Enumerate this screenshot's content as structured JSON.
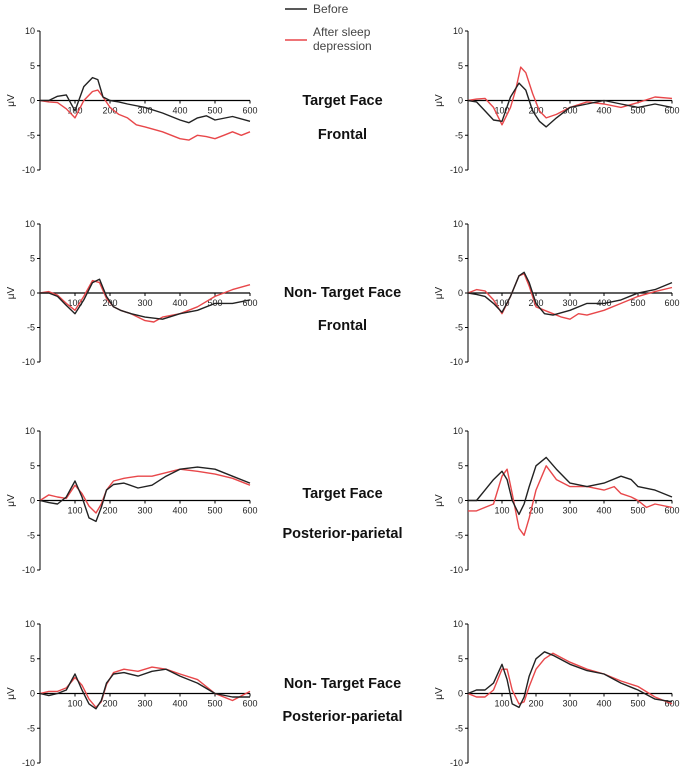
{
  "legend": {
    "items": [
      {
        "label": "Before",
        "color": "#222222"
      },
      {
        "label": "After sleep\ndepression",
        "color": "#e8474a"
      }
    ]
  },
  "row_labels": [
    {
      "line1": "Target Face",
      "line2": "Frontal"
    },
    {
      "line1": "Non- Target Face",
      "line2": "Frontal"
    },
    {
      "line1": "Target Face",
      "line2": "Posterior-parietal"
    },
    {
      "line1": "Non- Target Face",
      "line2": "Posterior-parietal"
    }
  ],
  "colors": {
    "before": "#222222",
    "after": "#e8474a",
    "axis": "#000000"
  },
  "chart_data": [
    {
      "type": "line",
      "panel": "row1-left",
      "ylabel": "μV",
      "xlim": [
        0,
        600
      ],
      "ylim": [
        -10,
        10
      ],
      "xticks": [
        100,
        200,
        300,
        400,
        500,
        600
      ],
      "yticks": [
        -10,
        -5,
        0,
        5,
        10
      ],
      "series": [
        {
          "name": "Before",
          "x": [
            0,
            25,
            50,
            75,
            100,
            125,
            150,
            165,
            180,
            200,
            225,
            250,
            300,
            350,
            400,
            425,
            450,
            475,
            500,
            550,
            600
          ],
          "y": [
            0,
            0,
            0.6,
            0.8,
            -1.5,
            2,
            3.3,
            3,
            0.5,
            0,
            -0.2,
            -0.5,
            -1,
            -1.8,
            -2.8,
            -3.2,
            -2.5,
            -2.2,
            -2.8,
            -2.3,
            -3
          ]
        },
        {
          "name": "After sleep\ndepression",
          "x": [
            0,
            25,
            50,
            75,
            100,
            125,
            150,
            165,
            180,
            200,
            225,
            250,
            275,
            300,
            350,
            400,
            425,
            450,
            475,
            500,
            525,
            550,
            575,
            600
          ],
          "y": [
            0,
            -0.2,
            -0.3,
            -1.2,
            -2.5,
            0,
            1.3,
            1.5,
            0.5,
            -1,
            -2,
            -2.5,
            -3.5,
            -3.8,
            -4.5,
            -5.5,
            -5.7,
            -5,
            -5.2,
            -5.5,
            -5,
            -4.5,
            -5,
            -4.5
          ]
        }
      ]
    },
    {
      "type": "line",
      "panel": "row1-right",
      "ylabel": "μV",
      "xlim": [
        0,
        600
      ],
      "ylim": [
        -10,
        10
      ],
      "xticks": [
        100,
        200,
        300,
        400,
        500,
        600
      ],
      "yticks": [
        -10,
        -5,
        0,
        5,
        10
      ],
      "series": [
        {
          "name": "Before",
          "x": [
            0,
            25,
            50,
            75,
            100,
            125,
            150,
            170,
            190,
            210,
            230,
            260,
            300,
            350,
            400,
            450,
            500,
            550,
            600
          ],
          "y": [
            0,
            -0.2,
            -1.5,
            -2.8,
            -3,
            0.5,
            2.5,
            1.5,
            -1.5,
            -3,
            -3.8,
            -2.5,
            -1,
            -0.5,
            0,
            -0.5,
            -1,
            -0.5,
            -1
          ]
        },
        {
          "name": "After sleep\ndepression",
          "x": [
            0,
            25,
            50,
            75,
            100,
            125,
            140,
            155,
            170,
            190,
            210,
            230,
            260,
            300,
            350,
            400,
            450,
            500,
            550,
            600
          ],
          "y": [
            0,
            0.2,
            0.3,
            -1,
            -3.5,
            -1,
            1.5,
            4.8,
            4,
            1,
            -1.5,
            -2.5,
            -2,
            -1,
            -0.2,
            -0.5,
            -1,
            -0.3,
            0.5,
            0.3
          ]
        }
      ]
    },
    {
      "type": "line",
      "panel": "row2-left",
      "ylabel": "μV",
      "xlim": [
        0,
        600
      ],
      "ylim": [
        -10,
        10
      ],
      "xticks": [
        100,
        200,
        300,
        400,
        500,
        600
      ],
      "yticks": [
        -10,
        -5,
        0,
        5,
        10
      ],
      "series": [
        {
          "name": "Before",
          "x": [
            0,
            25,
            50,
            75,
            100,
            125,
            150,
            170,
            190,
            210,
            230,
            260,
            300,
            350,
            400,
            450,
            500,
            550,
            600
          ],
          "y": [
            0,
            0,
            -0.5,
            -1.8,
            -3,
            -1,
            1.5,
            2,
            -0.5,
            -2,
            -2.5,
            -3,
            -3.5,
            -3.8,
            -3,
            -2.5,
            -1.5,
            -1.5,
            -1
          ]
        },
        {
          "name": "After sleep\ndepression",
          "x": [
            0,
            25,
            50,
            75,
            100,
            125,
            150,
            170,
            190,
            210,
            230,
            260,
            300,
            325,
            350,
            400,
            450,
            500,
            550,
            600
          ],
          "y": [
            0,
            0.2,
            -0.3,
            -1.5,
            -2.5,
            -0.5,
            1.8,
            1.5,
            -0.8,
            -2,
            -2.5,
            -3,
            -4,
            -4.2,
            -3.5,
            -3,
            -2,
            -0.5,
            0.5,
            1.2
          ]
        }
      ]
    },
    {
      "type": "line",
      "panel": "row2-right",
      "ylabel": "μV",
      "xlim": [
        0,
        600
      ],
      "ylim": [
        -10,
        10
      ],
      "xticks": [
        100,
        200,
        300,
        400,
        500,
        600
      ],
      "yticks": [
        -10,
        -5,
        0,
        5,
        10
      ],
      "series": [
        {
          "name": "Before",
          "x": [
            0,
            25,
            50,
            75,
            100,
            125,
            150,
            165,
            180,
            200,
            225,
            250,
            300,
            350,
            400,
            450,
            500,
            550,
            600
          ],
          "y": [
            0,
            -0.2,
            -0.5,
            -1.5,
            -2.8,
            -0.5,
            2.5,
            3,
            1.5,
            -1.5,
            -3,
            -3.2,
            -2.5,
            -1.5,
            -1.5,
            -1,
            0,
            0.5,
            1.5
          ]
        },
        {
          "name": "After sleep\ndepression",
          "x": [
            0,
            25,
            50,
            75,
            100,
            125,
            150,
            165,
            180,
            200,
            225,
            250,
            275,
            300,
            325,
            350,
            400,
            450,
            500,
            550,
            600
          ],
          "y": [
            0,
            0.5,
            0.3,
            -1,
            -3,
            -0.5,
            2.5,
            2.8,
            1,
            -2,
            -2.5,
            -3,
            -3.5,
            -3.8,
            -3,
            -3.2,
            -2.5,
            -1.5,
            -0.5,
            0.2,
            0.8
          ]
        }
      ]
    },
    {
      "type": "line",
      "panel": "row3-left",
      "ylabel": "μV",
      "xlim": [
        0,
        600
      ],
      "ylim": [
        -10,
        10
      ],
      "xticks": [
        100,
        200,
        300,
        400,
        500,
        600
      ],
      "yticks": [
        -10,
        -5,
        0,
        5,
        10
      ],
      "series": [
        {
          "name": "Before",
          "x": [
            0,
            25,
            50,
            75,
            100,
            120,
            140,
            160,
            175,
            190,
            210,
            240,
            280,
            320,
            360,
            400,
            450,
            500,
            550,
            600
          ],
          "y": [
            0,
            -0.3,
            -0.5,
            0.5,
            2.8,
            0.5,
            -2.5,
            -3,
            -1,
            1.5,
            2.3,
            2.5,
            1.8,
            2.2,
            3.5,
            4.5,
            4.8,
            4.5,
            3.5,
            2.5
          ]
        },
        {
          "name": "After sleep\ndepression",
          "x": [
            0,
            25,
            50,
            75,
            100,
            120,
            140,
            160,
            175,
            190,
            210,
            240,
            280,
            320,
            360,
            400,
            450,
            500,
            550,
            600
          ],
          "y": [
            0,
            0.8,
            0.5,
            0.3,
            2.2,
            1,
            -0.8,
            -1.8,
            -0.5,
            1.5,
            2.8,
            3.2,
            3.5,
            3.5,
            4,
            4.5,
            4.2,
            3.8,
            3.2,
            2.2
          ]
        }
      ]
    },
    {
      "type": "line",
      "panel": "row3-right",
      "ylabel": "μV",
      "xlim": [
        0,
        600
      ],
      "ylim": [
        -10,
        10
      ],
      "xticks": [
        100,
        200,
        300,
        400,
        500,
        600
      ],
      "yticks": [
        -10,
        -5,
        0,
        5,
        10
      ],
      "series": [
        {
          "name": "Before",
          "x": [
            0,
            25,
            50,
            75,
            100,
            115,
            130,
            150,
            165,
            180,
            200,
            230,
            260,
            300,
            350,
            400,
            450,
            480,
            500,
            550,
            600
          ],
          "y": [
            0,
            0,
            1.5,
            3,
            4.2,
            3,
            0,
            -2,
            -0.5,
            2,
            5,
            6.2,
            4.5,
            2.5,
            2,
            2.5,
            3.5,
            3,
            2,
            1.5,
            0.5
          ]
        },
        {
          "name": "After sleep\ndepression",
          "x": [
            0,
            25,
            50,
            75,
            100,
            115,
            130,
            150,
            165,
            180,
            200,
            230,
            260,
            300,
            350,
            400,
            430,
            450,
            480,
            500,
            525,
            550,
            600
          ],
          "y": [
            -1.5,
            -1.5,
            -1,
            -0.5,
            3.5,
            4.5,
            1,
            -4,
            -5,
            -2.5,
            1.5,
            5,
            3,
            2,
            2,
            1.5,
            2,
            1,
            0.5,
            0,
            -1,
            -0.5,
            -1
          ]
        }
      ]
    },
    {
      "type": "line",
      "panel": "row4-left",
      "ylabel": "μV",
      "xlim": [
        0,
        600
      ],
      "ylim": [
        -10,
        10
      ],
      "xticks": [
        100,
        200,
        300,
        400,
        500,
        600
      ],
      "yticks": [
        -10,
        -5,
        0,
        5,
        10
      ],
      "series": [
        {
          "name": "Before",
          "x": [
            0,
            25,
            50,
            75,
            100,
            120,
            140,
            160,
            175,
            190,
            210,
            240,
            280,
            320,
            360,
            400,
            450,
            500,
            550,
            600
          ],
          "y": [
            0,
            -0.3,
            0,
            0.5,
            2.8,
            0.5,
            -1.5,
            -2.2,
            -1,
            1.5,
            2.8,
            3,
            2.5,
            3.2,
            3.5,
            2.5,
            1.5,
            0,
            -0.5,
            -0.5
          ]
        },
        {
          "name": "After sleep\ndepression",
          "x": [
            0,
            25,
            50,
            75,
            100,
            120,
            140,
            160,
            175,
            190,
            210,
            240,
            280,
            320,
            360,
            400,
            450,
            500,
            550,
            600
          ],
          "y": [
            0,
            0.3,
            0.3,
            0.8,
            2.3,
            1.2,
            -0.8,
            -2,
            -1.2,
            1.3,
            3,
            3.5,
            3.2,
            3.8,
            3.5,
            2.8,
            2,
            0,
            -1,
            0.3
          ]
        }
      ]
    },
    {
      "type": "line",
      "panel": "row4-right",
      "ylabel": "μV",
      "xlim": [
        0,
        600
      ],
      "ylim": [
        -10,
        10
      ],
      "xticks": [
        100,
        200,
        300,
        400,
        500,
        600
      ],
      "yticks": [
        -10,
        -5,
        0,
        5,
        10
      ],
      "series": [
        {
          "name": "Before",
          "x": [
            0,
            25,
            50,
            75,
            100,
            115,
            130,
            150,
            165,
            180,
            200,
            225,
            250,
            300,
            350,
            400,
            450,
            500,
            550,
            600
          ],
          "y": [
            0,
            0.5,
            0.5,
            1.5,
            4.2,
            2,
            -1.5,
            -2,
            -0.5,
            2.5,
            5,
            6,
            5.5,
            4.2,
            3.3,
            2.8,
            1.5,
            0.5,
            -0.8,
            -1.2
          ]
        },
        {
          "name": "After sleep\ndepression",
          "x": [
            0,
            25,
            50,
            75,
            100,
            115,
            130,
            150,
            165,
            180,
            200,
            225,
            250,
            300,
            350,
            400,
            450,
            500,
            550,
            600
          ],
          "y": [
            0,
            -0.5,
            -0.5,
            0.5,
            3.5,
            3.5,
            0.5,
            -1.5,
            -1.2,
            1,
            3.5,
            5,
            5.8,
            4.5,
            3.5,
            2.8,
            1.8,
            1,
            -0.5,
            -1.5
          ]
        }
      ]
    }
  ]
}
